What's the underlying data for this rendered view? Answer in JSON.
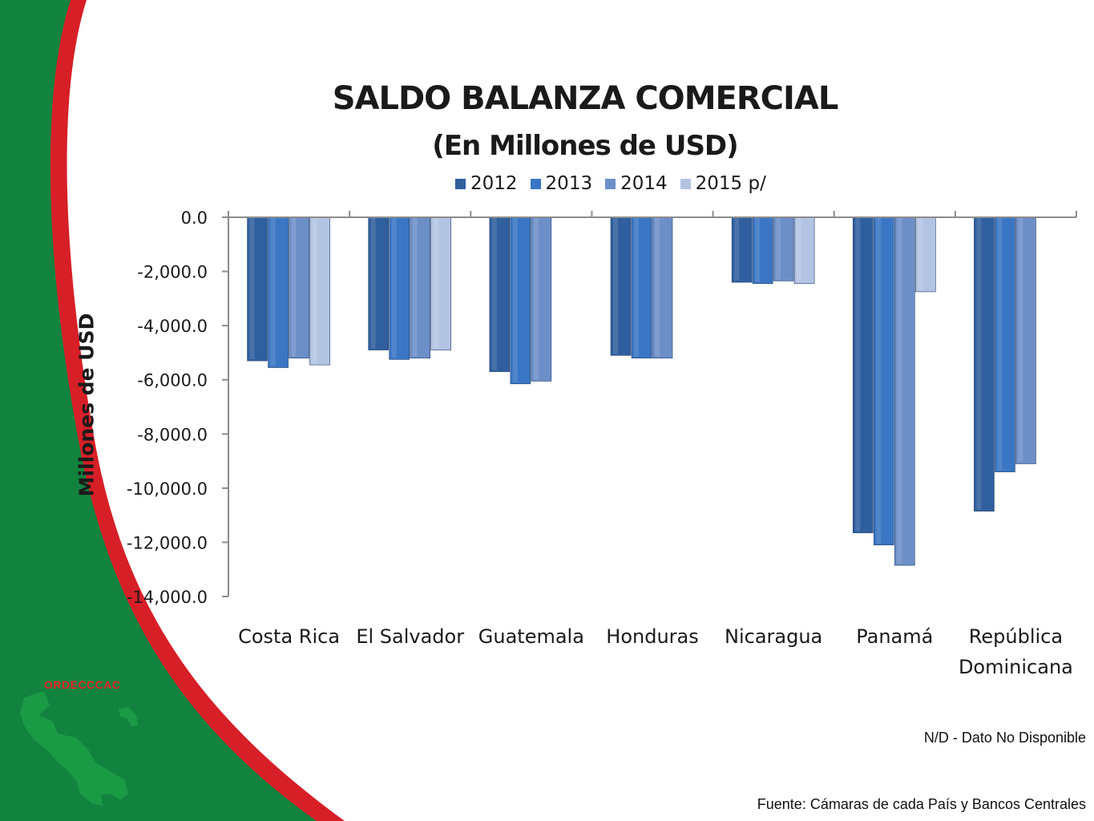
{
  "brand": {
    "label": "ORDECCCAC"
  },
  "notes": {
    "nd": "N/D  - Dato No Disponible",
    "source": "Fuente: Cámaras de cada País y Bancos Centrales"
  },
  "colors": {
    "green": "#12833f",
    "red": "#d71f27",
    "map_green": "#1a9a45"
  },
  "chart_data": {
    "type": "bar",
    "title": "SALDO BALANZA COMERCIAL",
    "subtitle": "(En Millones de USD)",
    "ylabel": "Millones de USD",
    "xlabel": "",
    "ylim": [
      -14000,
      0
    ],
    "yticks": [
      0,
      -2000,
      -4000,
      -6000,
      -8000,
      -10000,
      -12000,
      -14000
    ],
    "ytick_labels": [
      "0.0",
      "-2,000.0",
      "-4,000.0",
      "-6,000.0",
      "-8,000.0",
      "-10,000.0",
      "-12,000.0",
      "-14,000.0"
    ],
    "legend_position": "top",
    "categories": [
      "Costa Rica",
      "El Salvador",
      "Guatemala",
      "Honduras",
      "Nicaragua",
      "Panamá",
      "República Dominicana"
    ],
    "series": [
      {
        "name": "2012",
        "color": "#2f5f9e",
        "values": [
          -5300,
          -4900,
          -5700,
          -5100,
          -2400,
          -11650,
          -10850
        ]
      },
      {
        "name": "2013",
        "color": "#3a76c4",
        "values": [
          -5550,
          -5250,
          -6150,
          -5200,
          -2450,
          -12100,
          -9400
        ]
      },
      {
        "name": "2014",
        "color": "#6d8fc8",
        "values": [
          -5200,
          -5200,
          -6050,
          -5200,
          -2350,
          -12850,
          -9100
        ]
      },
      {
        "name": "2015 p/",
        "color": "#b3c4e3",
        "values": [
          -5450,
          -4900,
          null,
          null,
          -2450,
          -2750,
          null
        ]
      }
    ]
  }
}
